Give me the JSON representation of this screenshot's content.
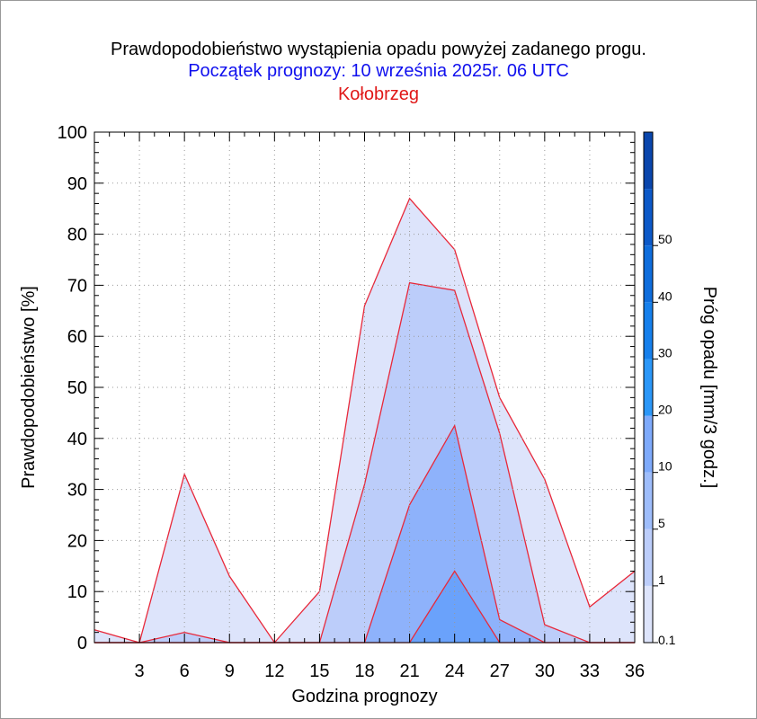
{
  "titles": {
    "line1": "Prawdopodobieństwo wystąpienia opadu powyżej zadanego progu.",
    "line2": "Początek prognozy: 10 września 2025r. 06 UTC",
    "line3": "Kołobrzeg"
  },
  "chart_data": {
    "type": "area",
    "xlabel": "Godzina prognozy",
    "ylabel": "Prawdopodobieństwo [%]",
    "xlim": [
      0,
      36
    ],
    "ylim": [
      0,
      100
    ],
    "x_ticks": [
      3,
      6,
      9,
      12,
      15,
      18,
      21,
      24,
      27,
      30,
      33,
      36
    ],
    "y_ticks": [
      0,
      10,
      20,
      30,
      40,
      50,
      60,
      70,
      80,
      90,
      100
    ],
    "grid": true,
    "x": [
      0,
      3,
      6,
      9,
      12,
      15,
      18,
      21,
      24,
      27,
      30,
      33,
      36
    ],
    "series": [
      {
        "threshold": 0.1,
        "color": "#dde4fb",
        "values": [
          2.5,
          0,
          33,
          13,
          0,
          10,
          66,
          87,
          77,
          48,
          32,
          7,
          14
        ]
      },
      {
        "threshold": 1,
        "color": "#bccdfa",
        "values": [
          0,
          0,
          2,
          0,
          0,
          0,
          31,
          70.5,
          69,
          41,
          3.5,
          0,
          0
        ]
      },
      {
        "threshold": 5,
        "color": "#8eb2fb",
        "values": [
          0,
          0,
          0,
          0,
          0,
          0,
          0,
          27,
          42.5,
          4.5,
          0,
          0,
          0
        ]
      },
      {
        "threshold": 10,
        "color": "#6aa2fb",
        "values": [
          0,
          0,
          0,
          0,
          0,
          0,
          0,
          0,
          14,
          0,
          0,
          0,
          0
        ]
      }
    ],
    "colorbar": {
      "label": "Próg opadu [mm/3 godz.]",
      "labels": [
        "0.1",
        "1",
        "5",
        "10",
        "20",
        "30",
        "40",
        "50"
      ],
      "colors": [
        "#dde4fb",
        "#bccdfa",
        "#9ebdfb",
        "#7eaafb",
        "#2b97f8",
        "#1680ec",
        "#0f6ddc",
        "#0c59c8",
        "#0a46ac"
      ]
    }
  }
}
